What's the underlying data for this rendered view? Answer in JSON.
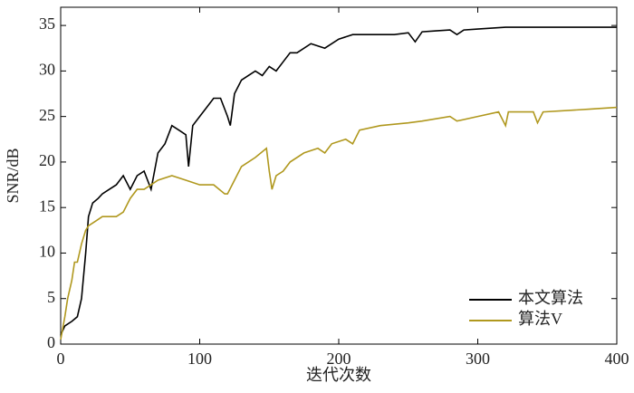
{
  "chart_data": {
    "type": "line",
    "xlabel": "迭代次数",
    "ylabel": "SNR/dB",
    "xlim": [
      0,
      400
    ],
    "xticks": [
      0,
      100,
      200,
      300,
      400
    ],
    "ylim": [
      0,
      37
    ],
    "yticks": [
      0,
      5,
      10,
      15,
      20,
      25,
      30,
      35
    ],
    "legend": "lower right",
    "series": [
      {
        "name": "本文算法",
        "color": "#000000",
        "x": [
          0,
          3,
          8,
          12,
          15,
          18,
          20,
          23,
          27,
          30,
          35,
          40,
          45,
          50,
          55,
          60,
          65,
          70,
          75,
          80,
          85,
          90,
          92,
          95,
          100,
          105,
          110,
          115,
          120,
          122,
          125,
          130,
          135,
          140,
          145,
          150,
          155,
          160,
          165,
          170,
          180,
          190,
          200,
          210,
          220,
          230,
          240,
          250,
          255,
          260,
          270,
          280,
          285,
          290,
          300,
          320,
          350,
          400
        ],
        "values": [
          1,
          2,
          2.5,
          3,
          5,
          10,
          14,
          15.5,
          16,
          16.5,
          17,
          17.5,
          18.5,
          17,
          18.5,
          19,
          17,
          21,
          22,
          24,
          23.5,
          23,
          19.5,
          24,
          25,
          26,
          27,
          27,
          25,
          24,
          27.5,
          29,
          29.5,
          30,
          29.5,
          30.5,
          30,
          31,
          32,
          32,
          33,
          32.5,
          33.5,
          34,
          34,
          34,
          34,
          34.2,
          33.2,
          34.3,
          34.4,
          34.5,
          34,
          34.5,
          34.6,
          34.8,
          34.8,
          34.8
        ]
      },
      {
        "name": "算法V",
        "color": "#b0981e",
        "x": [
          0,
          3,
          5,
          8,
          10,
          12,
          15,
          18,
          20,
          25,
          30,
          40,
          45,
          50,
          55,
          60,
          65,
          70,
          80,
          90,
          100,
          110,
          118,
          120,
          125,
          130,
          140,
          148,
          150,
          152,
          155,
          160,
          165,
          175,
          185,
          190,
          195,
          205,
          210,
          215,
          230,
          250,
          260,
          280,
          285,
          300,
          315,
          320,
          322,
          340,
          343,
          347,
          380,
          400
        ],
        "values": [
          0.5,
          3,
          5,
          7,
          9,
          9,
          11,
          12.5,
          13,
          13.5,
          14,
          14,
          14.5,
          16,
          17,
          17,
          17.5,
          18,
          18.5,
          18,
          17.5,
          17.5,
          16.5,
          16.5,
          18,
          19.5,
          20.5,
          21.5,
          19,
          17,
          18.5,
          19,
          20,
          21,
          21.5,
          21,
          22,
          22.5,
          22,
          23.5,
          24,
          24.3,
          24.5,
          25,
          24.5,
          25,
          25.5,
          24,
          25.5,
          25.5,
          24.3,
          25.5,
          25.8,
          26
        ]
      }
    ]
  }
}
